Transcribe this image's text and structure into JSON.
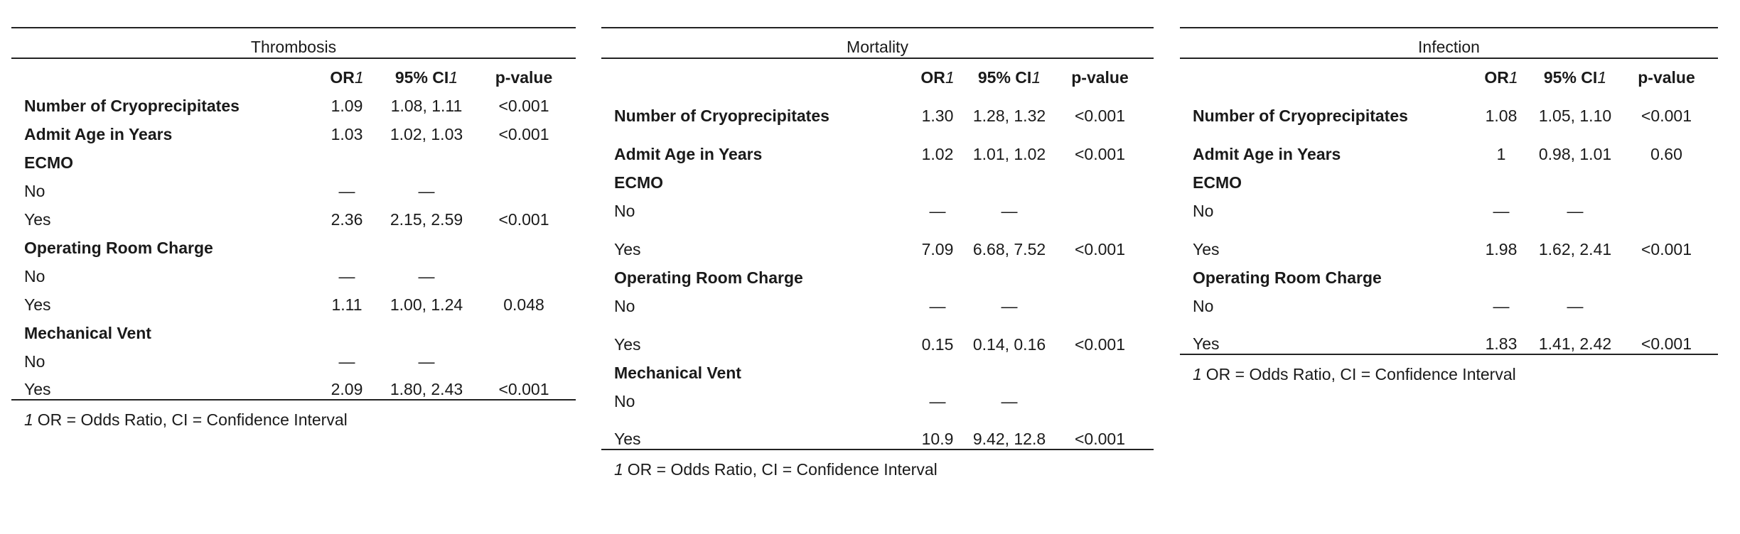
{
  "headers": {
    "or": "OR",
    "ci": "95% CI",
    "p": "p-value",
    "footnote_mark": "1"
  },
  "footnote": "OR = Odds Ratio, CI = Confidence Interval",
  "panels": [
    {
      "title": "Thrombosis",
      "rows": [
        {
          "label": "Number of Cryoprecipitates",
          "bold": true,
          "or": "1.09",
          "ci": "1.08, 1.11",
          "p": "<0.001"
        },
        {
          "label": "Admit Age in Years",
          "bold": true,
          "or": "1.03",
          "ci": "1.02, 1.03",
          "p": "<0.001"
        },
        {
          "label": "ECMO",
          "bold": true,
          "or": "",
          "ci": "",
          "p": ""
        },
        {
          "label": "No",
          "bold": false,
          "or": "—",
          "ci": "—",
          "p": ""
        },
        {
          "label": "Yes",
          "bold": false,
          "or": "2.36",
          "ci": "2.15, 2.59",
          "p": "<0.001"
        },
        {
          "label": "Operating Room Charge",
          "bold": true,
          "or": "",
          "ci": "",
          "p": ""
        },
        {
          "label": "No",
          "bold": false,
          "or": "—",
          "ci": "—",
          "p": ""
        },
        {
          "label": "Yes",
          "bold": false,
          "or": "1.11",
          "ci": "1.00, 1.24",
          "p": "0.048"
        },
        {
          "label": "Mechanical Vent",
          "bold": true,
          "or": "",
          "ci": "",
          "p": ""
        },
        {
          "label": "No",
          "bold": false,
          "or": "—",
          "ci": "—",
          "p": ""
        },
        {
          "label": "Yes",
          "bold": false,
          "or": "2.09",
          "ci": "1.80, 2.43",
          "p": "<0.001"
        }
      ]
    },
    {
      "title": "Mortality",
      "rows": [
        {
          "label": "Number of Cryoprecipitates",
          "bold": true,
          "or": "1.30",
          "ci": "1.28, 1.32",
          "p": "<0.001"
        },
        {
          "label": "Admit Age in Years",
          "bold": true,
          "or": "1.02",
          "ci": "1.01, 1.02",
          "p": "<0.001"
        },
        {
          "label": "ECMO",
          "bold": true,
          "or": "",
          "ci": "",
          "p": ""
        },
        {
          "label": "No",
          "bold": false,
          "or": "—",
          "ci": "—",
          "p": ""
        },
        {
          "label": "Yes",
          "bold": false,
          "or": "7.09",
          "ci": "6.68, 7.52",
          "p": "<0.001"
        },
        {
          "label": "Operating Room Charge",
          "bold": true,
          "or": "",
          "ci": "",
          "p": ""
        },
        {
          "label": "No",
          "bold": false,
          "or": "—",
          "ci": "—",
          "p": ""
        },
        {
          "label": "Yes",
          "bold": false,
          "or": "0.15",
          "ci": "0.14, 0.16",
          "p": "<0.001"
        },
        {
          "label": "Mechanical Vent",
          "bold": true,
          "or": "",
          "ci": "",
          "p": ""
        },
        {
          "label": "No",
          "bold": false,
          "or": "—",
          "ci": "—",
          "p": ""
        },
        {
          "label": "Yes",
          "bold": false,
          "or": "10.9",
          "ci": "9.42, 12.8",
          "p": "<0.001"
        }
      ]
    },
    {
      "title": "Infection",
      "rows": [
        {
          "label": "Number of Cryoprecipitates",
          "bold": true,
          "or": "1.08",
          "ci": "1.05, 1.10",
          "p": "<0.001"
        },
        {
          "label": "Admit Age in Years",
          "bold": true,
          "or": "1",
          "ci": "0.98, 1.01",
          "p": "0.60"
        },
        {
          "label": "ECMO",
          "bold": true,
          "or": "",
          "ci": "",
          "p": ""
        },
        {
          "label": "No",
          "bold": false,
          "or": "—",
          "ci": "—",
          "p": ""
        },
        {
          "label": "Yes",
          "bold": false,
          "or": "1.98",
          "ci": "1.62, 2.41",
          "p": "<0.001"
        },
        {
          "label": "Operating Room Charge",
          "bold": true,
          "or": "",
          "ci": "",
          "p": ""
        },
        {
          "label": "No",
          "bold": false,
          "or": "—",
          "ci": "—",
          "p": ""
        },
        {
          "label": "Yes",
          "bold": false,
          "or": "1.83",
          "ci": "1.41, 2.42",
          "p": "<0.001"
        }
      ]
    }
  ]
}
